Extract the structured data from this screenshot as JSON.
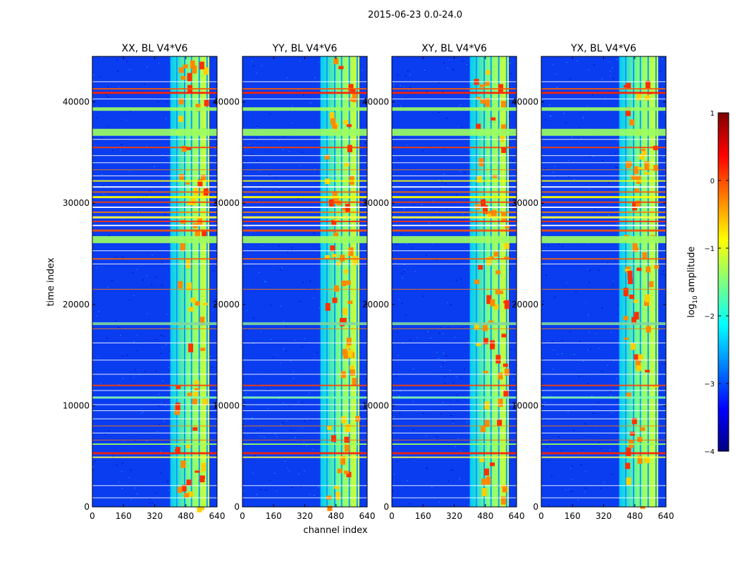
{
  "figure": {
    "suptitle": "2015-06-23 0.0-24.0",
    "xlabel": "channel index",
    "ylabel": "time index"
  },
  "chart_data": {
    "type": "heatmap",
    "panels": [
      {
        "title": "XX, BL V4*V6"
      },
      {
        "title": "YY, BL V4*V6"
      },
      {
        "title": "XY, BL V4*V6"
      },
      {
        "title": "YX, BL V4*V6"
      }
    ],
    "xlim": [
      0,
      640
    ],
    "ylim": [
      0,
      44500
    ],
    "x_ticks": [
      0,
      160,
      320,
      480,
      640
    ],
    "x_tick_labels": [
      "0",
      "160",
      "320",
      "480",
      "640"
    ],
    "y_ticks": [
      0,
      10000,
      20000,
      30000,
      40000
    ],
    "y_tick_labels": [
      "0",
      "10000",
      "20000",
      "30000",
      "40000"
    ],
    "bright_channel_range": [
      400,
      600
    ],
    "colorbar": {
      "label_main": "log",
      "label_sub": "10",
      "label_rest": " amplitude",
      "range": [
        -4,
        1
      ],
      "ticks": [
        1,
        0,
        -1,
        -2,
        -3,
        -4
      ],
      "tick_labels": [
        "1",
        "0",
        "−1",
        "−2",
        "−3",
        "−4"
      ],
      "colormap": "jet",
      "colors": [
        "#00007f",
        "#0000ff",
        "#007fff",
        "#00ffff",
        "#7fff7f",
        "#ffff00",
        "#ff7f00",
        "#ff0000",
        "#7f0000"
      ]
    }
  }
}
